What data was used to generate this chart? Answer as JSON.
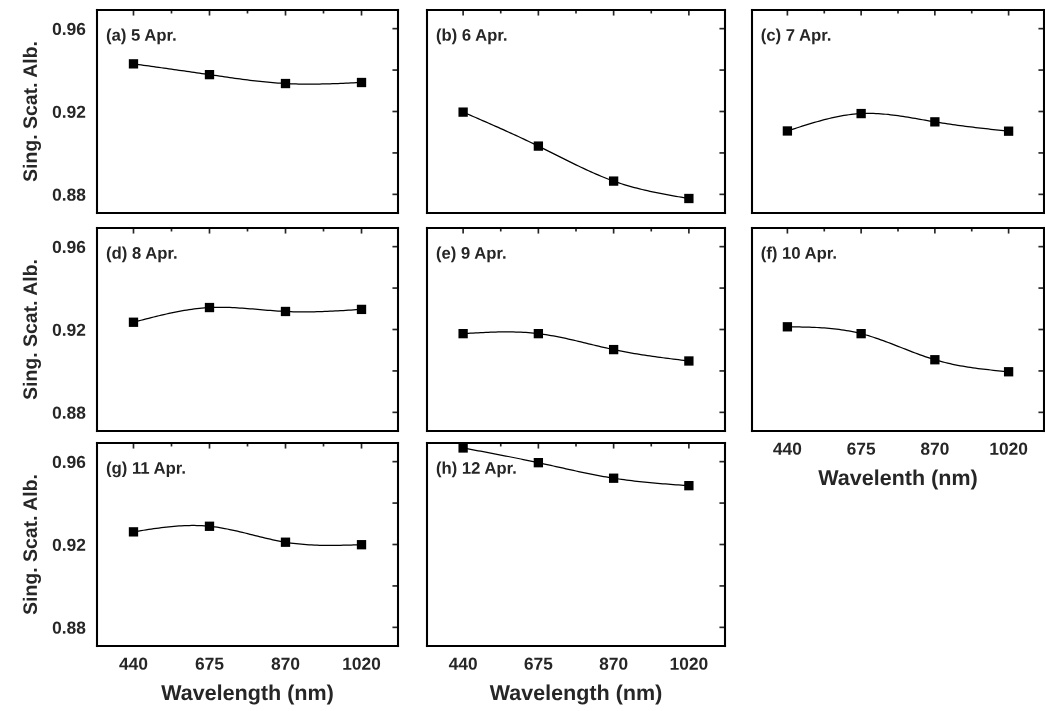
{
  "chart_data": [
    {
      "type": "line",
      "annotations": [
        "(a) 5 Apr."
      ],
      "ylabel": "Sing. Scat. Alb.",
      "categories": [
        "440",
        "675",
        "870",
        "1020"
      ],
      "series": [
        {
          "color": "#000000",
          "values": [
            0.943,
            0.9378,
            0.9335,
            0.934
          ]
        }
      ],
      "ylim": [
        0.871,
        0.969
      ],
      "yticks": [
        0.88,
        0.92,
        0.96
      ],
      "tick_labels": "y",
      "marker": "square",
      "line_style": "solid"
    },
    {
      "type": "line",
      "annotations": [
        "(b) 6 Apr."
      ],
      "categories": [
        "440",
        "675",
        "870",
        "1020"
      ],
      "series": [
        {
          "color": "#000000",
          "values": [
            0.9197,
            0.9033,
            0.8864,
            0.878
          ]
        }
      ],
      "ylim": [
        0.871,
        0.969
      ],
      "yticks": [
        0.88,
        0.92,
        0.96
      ],
      "tick_labels": false,
      "marker": "square",
      "line_style": "solid"
    },
    {
      "type": "line",
      "annotations": [
        "(c) 7 Apr."
      ],
      "categories": [
        "440",
        "675",
        "870",
        "1020"
      ],
      "series": [
        {
          "color": "#000000",
          "values": [
            0.9106,
            0.919,
            0.915,
            0.9105
          ]
        }
      ],
      "ylim": [
        0.871,
        0.969
      ],
      "yticks": [
        0.88,
        0.92,
        0.96
      ],
      "tick_labels": false,
      "marker": "square",
      "line_style": "solid"
    },
    {
      "type": "line",
      "annotations": [
        "(d) 8 Apr."
      ],
      "ylabel": "Sing. Scat. Alb.",
      "categories": [
        "440",
        "675",
        "870",
        "1020"
      ],
      "series": [
        {
          "color": "#000000",
          "values": [
            0.9235,
            0.9306,
            0.9287,
            0.9297
          ]
        }
      ],
      "ylim": [
        0.871,
        0.969
      ],
      "yticks": [
        0.88,
        0.92,
        0.96
      ],
      "tick_labels": "y",
      "marker": "square",
      "line_style": "solid"
    },
    {
      "type": "line",
      "annotations": [
        "(e) 9 Apr."
      ],
      "categories": [
        "440",
        "675",
        "870",
        "1020"
      ],
      "series": [
        {
          "color": "#000000",
          "values": [
            0.918,
            0.918,
            0.9103,
            0.9048
          ]
        }
      ],
      "ylim": [
        0.871,
        0.969
      ],
      "yticks": [
        0.88,
        0.92,
        0.96
      ],
      "tick_labels": false,
      "marker": "square",
      "line_style": "solid"
    },
    {
      "type": "line",
      "annotations": [
        "(f) 10 Apr."
      ],
      "xlabel": "Wavelenth (nm)",
      "categories": [
        "440",
        "675",
        "870",
        "1020"
      ],
      "series": [
        {
          "color": "#000000",
          "values": [
            0.9213,
            0.918,
            0.9054,
            0.8996
          ]
        }
      ],
      "ylim": [
        0.871,
        0.969
      ],
      "yticks": [
        0.88,
        0.92,
        0.96
      ],
      "tick_labels": "x",
      "marker": "square",
      "line_style": "solid"
    },
    {
      "type": "line",
      "annotations": [
        "(g) 11 Apr."
      ],
      "xlabel": "Wavelength (nm)",
      "ylabel": "Sing. Scat. Alb.",
      "categories": [
        "440",
        "675",
        "870",
        "1020"
      ],
      "series": [
        {
          "color": "#000000",
          "values": [
            0.9261,
            0.9288,
            0.9211,
            0.9199
          ]
        }
      ],
      "ylim": [
        0.871,
        0.969
      ],
      "yticks": [
        0.88,
        0.92,
        0.96
      ],
      "marker": "square",
      "line_style": "solid"
    },
    {
      "type": "line",
      "annotations": [
        "(h) 12 Apr."
      ],
      "xlabel": "Wavelength (nm)",
      "categories": [
        "440",
        "675",
        "870",
        "1020"
      ],
      "series": [
        {
          "color": "#000000",
          "values": [
            0.9666,
            0.9595,
            0.952,
            0.9484
          ]
        }
      ],
      "ylim": [
        0.871,
        0.969
      ],
      "yticks": [
        0.88,
        0.92,
        0.96
      ],
      "tick_labels": "x",
      "marker": "square",
      "line_style": "solid"
    }
  ]
}
